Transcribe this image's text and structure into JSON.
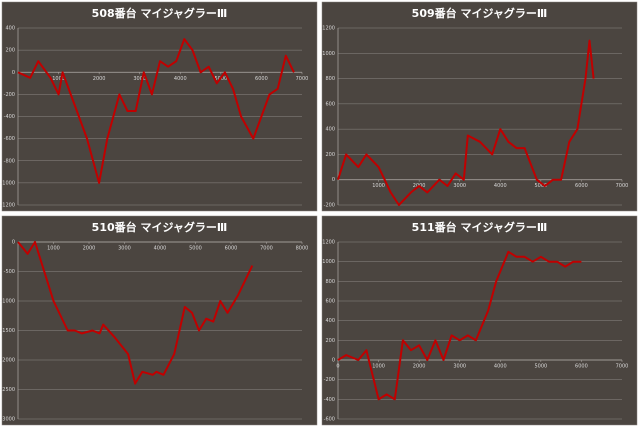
{
  "chart_data": [
    {
      "type": "line",
      "title": "508番台 マイジャグラーⅢ",
      "color": "#c00000",
      "grid": true,
      "x": [
        0,
        300,
        500,
        800,
        1000,
        1100,
        1400,
        1700,
        2000,
        2200,
        2500,
        2700,
        2900,
        3100,
        3300,
        3500,
        3700,
        3900,
        4100,
        4300,
        4500,
        4700,
        4900,
        5100,
        5300,
        5500,
        5800,
        6000,
        6200,
        6400,
        6600,
        6800
      ],
      "values": [
        0,
        -50,
        100,
        -50,
        -200,
        0,
        -300,
        -600,
        -1000,
        -600,
        -200,
        -350,
        -350,
        0,
        -200,
        100,
        50,
        100,
        300,
        200,
        0,
        50,
        -100,
        0,
        -150,
        -400,
        -600,
        -400,
        -200,
        -150,
        150,
        0
      ],
      "xlim": [
        0,
        7000
      ],
      "xticks": [
        1000,
        2000,
        3000,
        4000,
        5000,
        6000,
        7000
      ],
      "ylim": [
        -1200,
        400
      ],
      "yticks": [
        400,
        200,
        0,
        -200,
        -400,
        -600,
        -800,
        -1000,
        -1200
      ]
    },
    {
      "type": "line",
      "title": "509番台 マイジャグラーⅢ",
      "color": "#c00000",
      "grid": true,
      "x": [
        0,
        200,
        500,
        700,
        1000,
        1300,
        1500,
        1800,
        2000,
        2200,
        2500,
        2700,
        2900,
        3100,
        3200,
        3500,
        3800,
        4000,
        4200,
        4400,
        4600,
        4900,
        5100,
        5300,
        5500,
        5700,
        5900,
        6000,
        6100,
        6200,
        6300
      ],
      "values": [
        0,
        200,
        100,
        200,
        100,
        -100,
        -200,
        -100,
        -50,
        -100,
        0,
        -50,
        50,
        0,
        350,
        300,
        200,
        400,
        300,
        250,
        250,
        0,
        -50,
        0,
        0,
        300,
        400,
        600,
        800,
        1100,
        800
      ],
      "xlim": [
        0,
        7000
      ],
      "xticks": [
        1000,
        2000,
        3000,
        4000,
        5000,
        6000,
        7000
      ],
      "ylim": [
        -200,
        1200
      ],
      "yticks": [
        1200,
        1000,
        800,
        600,
        400,
        200,
        0,
        -200
      ]
    },
    {
      "type": "line",
      "title": "510番台 マイジャグラーⅢ",
      "color": "#c00000",
      "grid": true,
      "x": [
        0,
        270,
        480,
        1000,
        1400,
        1600,
        1800,
        2100,
        2300,
        2400,
        2700,
        3100,
        3300,
        3500,
        3800,
        3900,
        4100,
        4400,
        4700,
        4900,
        5100,
        5300,
        5500,
        5700,
        5900,
        6200,
        6600
      ],
      "values": [
        0,
        -200,
        0,
        -1000,
        -1500,
        -1500,
        -1550,
        -1500,
        -1550,
        -1400,
        -1600,
        -1900,
        -2400,
        -2200,
        -2250,
        -2200,
        -2250,
        -1900,
        -1100,
        -1200,
        -1500,
        -1300,
        -1350,
        -1000,
        -1200,
        -900,
        -400
      ],
      "xlim": [
        0,
        8000
      ],
      "xticks": [
        1000,
        2000,
        3000,
        4000,
        5000,
        6000,
        7000,
        8000
      ],
      "ylim": [
        -3000,
        0
      ],
      "yticks": [
        0,
        -500,
        -1000,
        -1500,
        -2000,
        -2500,
        -3000
      ]
    },
    {
      "type": "line",
      "title": "511番台 マイジャグラーⅢ",
      "color": "#c00000",
      "grid": true,
      "x": [
        0,
        200,
        500,
        700,
        1000,
        1200,
        1400,
        1600,
        1800,
        2000,
        2200,
        2400,
        2600,
        2800,
        3000,
        3200,
        3400,
        3700,
        3900,
        4200,
        4400,
        4600,
        4800,
        5000,
        5200,
        5400,
        5600,
        5800,
        6000
      ],
      "values": [
        0,
        50,
        0,
        100,
        -400,
        -350,
        -400,
        200,
        100,
        150,
        0,
        200,
        0,
        250,
        200,
        250,
        200,
        500,
        800,
        1100,
        1050,
        1050,
        1000,
        1050,
        1000,
        1000,
        950,
        1000,
        1000
      ],
      "xlim": [
        0,
        7000
      ],
      "xticks": [
        0,
        1000,
        2000,
        3000,
        4000,
        5000,
        6000,
        7000
      ],
      "ylim": [
        -600,
        1200
      ],
      "yticks": [
        1200,
        1000,
        800,
        600,
        400,
        200,
        0,
        -200,
        -400,
        -600
      ]
    }
  ]
}
